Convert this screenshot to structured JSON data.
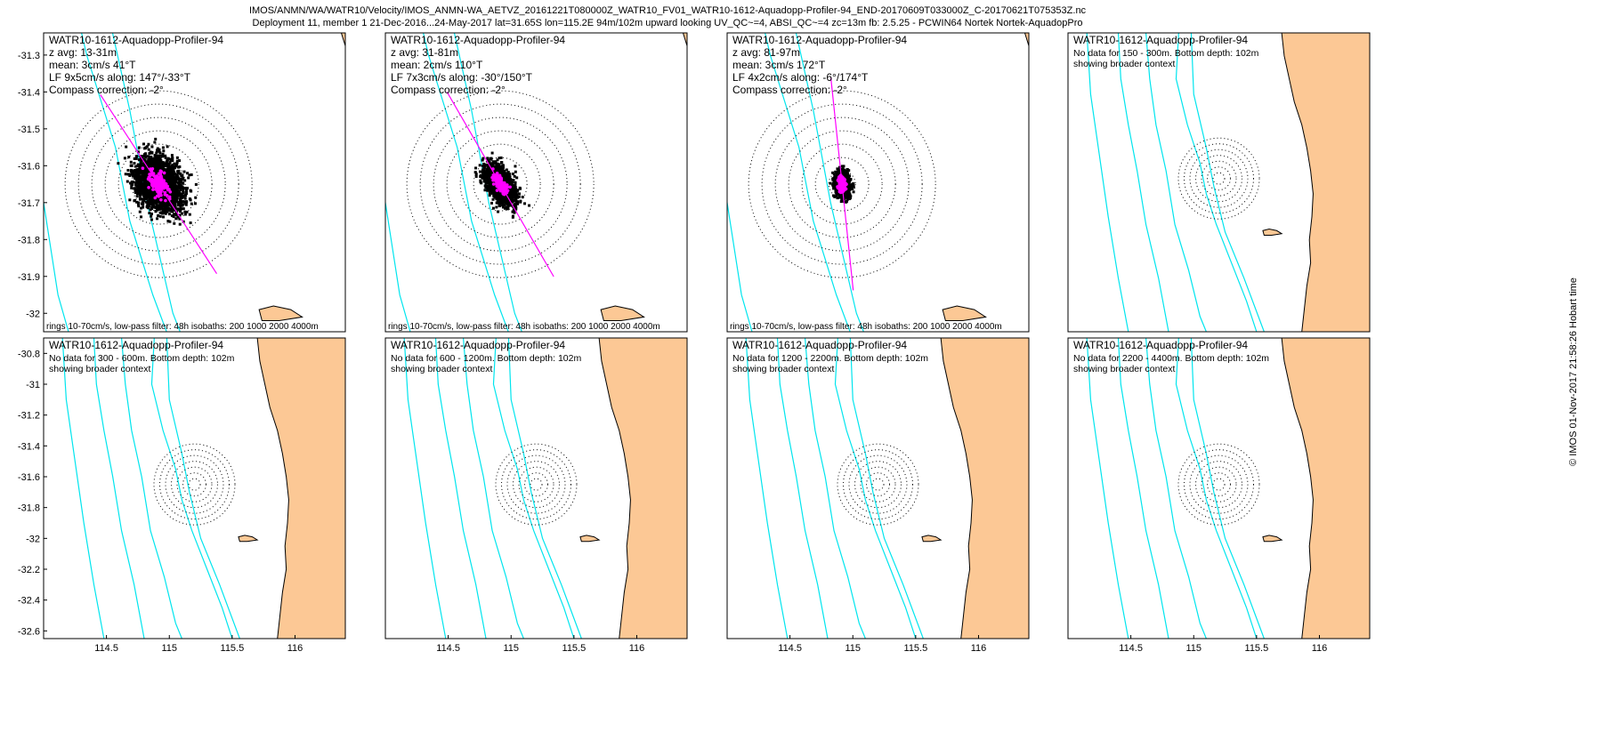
{
  "header": {
    "line1": "IMOS/ANMN/WA/WATR10/Velocity/IMOS_ANMN-WA_AETVZ_20161221T080000Z_WATR10_FV01_WATR10-1612-Aquadopp-Profiler-94_END-20170609T033000Z_C-20170621T075353Z.nc",
    "line2": "Deployment 11, member 1 21-Dec-2016...24-May-2017 lat=31.65S lon=115.2E 94m/102m upward looking UV_QC~=4, ABSI_QC~=4 zc=13m fb: 2.5.25 - PCWIN64 Nortek Nortek-AquadopPro"
  },
  "side_label": "© IMOS 01-Nov-2017 21:58:26 Hobart time",
  "colors": {
    "land": "#fcc895",
    "isobath": "#00e5ee",
    "scatter": "#000000",
    "lowpass": "#ff00ff",
    "ring": "#000000",
    "coast": "#000000"
  },
  "axes": {
    "row1_yticks": [
      -31.3,
      -31.4,
      -31.5,
      -31.6,
      -31.7,
      -31.8,
      -31.9,
      -32
    ],
    "row1_yticklabels": [
      "-31.3",
      "-31.4",
      "-31.5",
      "-31.6",
      "-31.7",
      "-31.8",
      "-31.9",
      "-32"
    ],
    "row2_yticks": [
      -30.8,
      -31,
      -31.2,
      -31.4,
      -31.6,
      -31.8,
      -32,
      -32.2,
      -32.4,
      -32.6
    ],
    "row2_yticklabels": [
      "-30.8",
      "-31",
      "-31.2",
      "-31.4",
      "-31.6",
      "-31.8",
      "-32",
      "-32.2",
      "-32.4",
      "-32.6"
    ],
    "xticks": [
      114.5,
      115,
      115.5,
      116
    ],
    "xticklabels": [
      "114.5",
      "115",
      "115.5",
      "116"
    ]
  },
  "chart_data": [
    {
      "type": "scatter",
      "title": "WATR10-1612-Aquadopp-Profiler-94",
      "lines": [
        "z avg: 13-31m",
        "mean: 3cm/s 41°T",
        "LF 9x5cm/s along: 147°/-33°T",
        "Compass correction: -2°"
      ],
      "footer": "rings 10-70cm/s, low-pass filter: 48h isobaths: 200 1000 2000 4000m",
      "xlim": [
        114.8,
        115.85
      ],
      "ylim": [
        -32.05,
        -31.24
      ],
      "center": [
        115.2,
        -31.65
      ],
      "mean_velocity_cms": 3,
      "mean_direction_deg": 41,
      "ellipse_cms": [
        9,
        5
      ],
      "along_direction_deg": 147,
      "rings_cms": [
        10,
        20,
        30,
        40,
        50,
        60,
        70
      ]
    },
    {
      "type": "scatter",
      "title": "WATR10-1612-Aquadopp-Profiler-94",
      "lines": [
        "z avg: 31-81m",
        "mean: 2cm/s 110°T",
        "LF 7x3cm/s along: -30°/150°T",
        "Compass correction: -2°"
      ],
      "footer": "rings 10-70cm/s, low-pass filter: 48h isobaths: 200 1000 2000 4000m",
      "xlim": [
        114.8,
        115.85
      ],
      "ylim": [
        -32.05,
        -31.24
      ],
      "center": [
        115.2,
        -31.65
      ],
      "mean_velocity_cms": 2,
      "mean_direction_deg": 110,
      "ellipse_cms": [
        7,
        3
      ],
      "along_direction_deg": 150,
      "rings_cms": [
        10,
        20,
        30,
        40,
        50,
        60,
        70
      ]
    },
    {
      "type": "scatter",
      "title": "WATR10-1612-Aquadopp-Profiler-94",
      "lines": [
        "z avg: 81-97m",
        "mean: 3cm/s 172°T",
        "LF 4x2cm/s along: -6°/174°T",
        "Compass correction: -2°"
      ],
      "footer": "rings 10-70cm/s, low-pass filter: 48h isobaths: 200 1000 2000 4000m",
      "xlim": [
        114.8,
        115.85
      ],
      "ylim": [
        -32.05,
        -31.24
      ],
      "center": [
        115.2,
        -31.65
      ],
      "mean_velocity_cms": 3,
      "mean_direction_deg": 172,
      "ellipse_cms": [
        4,
        2
      ],
      "along_direction_deg": 174,
      "rings_cms": [
        10,
        20,
        30,
        40,
        50,
        60,
        70
      ]
    },
    {
      "type": "scatter",
      "title": "WATR10-1612-Aquadopp-Profiler-94",
      "lines": [
        "No data for 150 - 300m. Bottom depth: 102m",
        "showing broader context"
      ],
      "xlim": [
        114.0,
        116.4
      ],
      "ylim": [
        -32.65,
        -30.7
      ],
      "center": [
        115.2,
        -31.65
      ]
    },
    {
      "type": "scatter",
      "title": "WATR10-1612-Aquadopp-Profiler-94",
      "lines": [
        "No data for 300 - 600m. Bottom depth: 102m",
        "showing broader context"
      ],
      "xlim": [
        114.0,
        116.4
      ],
      "ylim": [
        -32.65,
        -30.7
      ],
      "center": [
        115.2,
        -31.65
      ]
    },
    {
      "type": "scatter",
      "title": "WATR10-1612-Aquadopp-Profiler-94",
      "lines": [
        "No data for 600 - 1200m. Bottom depth: 102m",
        "showing broader context"
      ],
      "xlim": [
        114.0,
        116.4
      ],
      "ylim": [
        -32.65,
        -30.7
      ],
      "center": [
        115.2,
        -31.65
      ]
    },
    {
      "type": "scatter",
      "title": "WATR10-1612-Aquadopp-Profiler-94",
      "lines": [
        "No data for 1200 - 2200m. Bottom depth: 102m",
        "showing broader context"
      ],
      "xlim": [
        114.0,
        116.4
      ],
      "ylim": [
        -32.65,
        -30.7
      ],
      "center": [
        115.2,
        -31.65
      ]
    },
    {
      "type": "scatter",
      "title": "WATR10-1612-Aquadopp-Profiler-94",
      "lines": [
        "No data for 2200 - 4400m. Bottom depth: 102m",
        "showing broader context"
      ],
      "xlim": [
        114.0,
        116.4
      ],
      "ylim": [
        -32.65,
        -30.7
      ],
      "center": [
        115.2,
        -31.65
      ]
    }
  ]
}
